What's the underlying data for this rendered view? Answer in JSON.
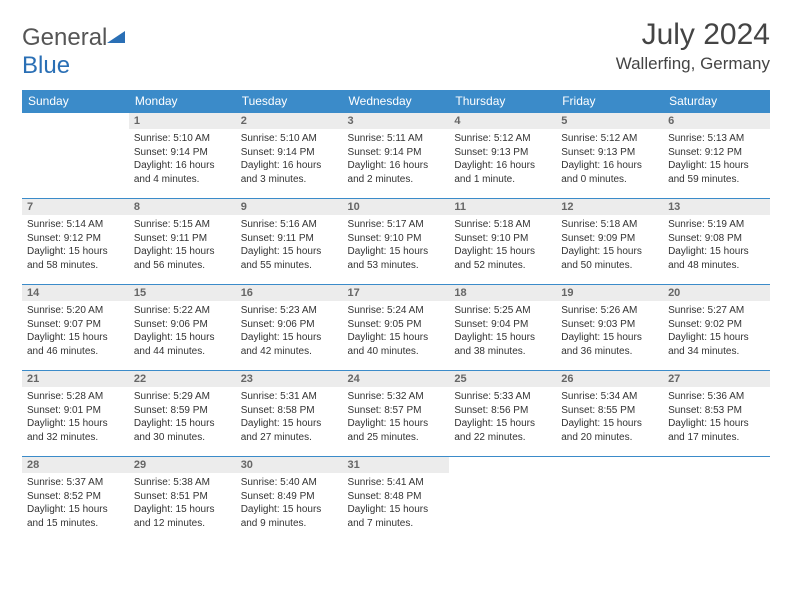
{
  "logo": {
    "text1": "General",
    "text2": "Blue"
  },
  "title": "July 2024",
  "location": "Wallerfing, Germany",
  "colors": {
    "header_bg": "#3b8bc9",
    "header_text": "#ffffff",
    "daynum_bg": "#ececec",
    "daynum_text": "#666666",
    "border": "#3b8bc9",
    "body_text": "#333333",
    "logo_gray": "#555555",
    "logo_blue": "#2a6fb5"
  },
  "weekdays": [
    "Sunday",
    "Monday",
    "Tuesday",
    "Wednesday",
    "Thursday",
    "Friday",
    "Saturday"
  ],
  "first_weekday_offset": 1,
  "days_in_month": 31,
  "days": {
    "1": {
      "sunrise": "5:10 AM",
      "sunset": "9:14 PM",
      "daylight": "16 hours and 4 minutes."
    },
    "2": {
      "sunrise": "5:10 AM",
      "sunset": "9:14 PM",
      "daylight": "16 hours and 3 minutes."
    },
    "3": {
      "sunrise": "5:11 AM",
      "sunset": "9:14 PM",
      "daylight": "16 hours and 2 minutes."
    },
    "4": {
      "sunrise": "5:12 AM",
      "sunset": "9:13 PM",
      "daylight": "16 hours and 1 minute."
    },
    "5": {
      "sunrise": "5:12 AM",
      "sunset": "9:13 PM",
      "daylight": "16 hours and 0 minutes."
    },
    "6": {
      "sunrise": "5:13 AM",
      "sunset": "9:12 PM",
      "daylight": "15 hours and 59 minutes."
    },
    "7": {
      "sunrise": "5:14 AM",
      "sunset": "9:12 PM",
      "daylight": "15 hours and 58 minutes."
    },
    "8": {
      "sunrise": "5:15 AM",
      "sunset": "9:11 PM",
      "daylight": "15 hours and 56 minutes."
    },
    "9": {
      "sunrise": "5:16 AM",
      "sunset": "9:11 PM",
      "daylight": "15 hours and 55 minutes."
    },
    "10": {
      "sunrise": "5:17 AM",
      "sunset": "9:10 PM",
      "daylight": "15 hours and 53 minutes."
    },
    "11": {
      "sunrise": "5:18 AM",
      "sunset": "9:10 PM",
      "daylight": "15 hours and 52 minutes."
    },
    "12": {
      "sunrise": "5:18 AM",
      "sunset": "9:09 PM",
      "daylight": "15 hours and 50 minutes."
    },
    "13": {
      "sunrise": "5:19 AM",
      "sunset": "9:08 PM",
      "daylight": "15 hours and 48 minutes."
    },
    "14": {
      "sunrise": "5:20 AM",
      "sunset": "9:07 PM",
      "daylight": "15 hours and 46 minutes."
    },
    "15": {
      "sunrise": "5:22 AM",
      "sunset": "9:06 PM",
      "daylight": "15 hours and 44 minutes."
    },
    "16": {
      "sunrise": "5:23 AM",
      "sunset": "9:06 PM",
      "daylight": "15 hours and 42 minutes."
    },
    "17": {
      "sunrise": "5:24 AM",
      "sunset": "9:05 PM",
      "daylight": "15 hours and 40 minutes."
    },
    "18": {
      "sunrise": "5:25 AM",
      "sunset": "9:04 PM",
      "daylight": "15 hours and 38 minutes."
    },
    "19": {
      "sunrise": "5:26 AM",
      "sunset": "9:03 PM",
      "daylight": "15 hours and 36 minutes."
    },
    "20": {
      "sunrise": "5:27 AM",
      "sunset": "9:02 PM",
      "daylight": "15 hours and 34 minutes."
    },
    "21": {
      "sunrise": "5:28 AM",
      "sunset": "9:01 PM",
      "daylight": "15 hours and 32 minutes."
    },
    "22": {
      "sunrise": "5:29 AM",
      "sunset": "8:59 PM",
      "daylight": "15 hours and 30 minutes."
    },
    "23": {
      "sunrise": "5:31 AM",
      "sunset": "8:58 PM",
      "daylight": "15 hours and 27 minutes."
    },
    "24": {
      "sunrise": "5:32 AM",
      "sunset": "8:57 PM",
      "daylight": "15 hours and 25 minutes."
    },
    "25": {
      "sunrise": "5:33 AM",
      "sunset": "8:56 PM",
      "daylight": "15 hours and 22 minutes."
    },
    "26": {
      "sunrise": "5:34 AM",
      "sunset": "8:55 PM",
      "daylight": "15 hours and 20 minutes."
    },
    "27": {
      "sunrise": "5:36 AM",
      "sunset": "8:53 PM",
      "daylight": "15 hours and 17 minutes."
    },
    "28": {
      "sunrise": "5:37 AM",
      "sunset": "8:52 PM",
      "daylight": "15 hours and 15 minutes."
    },
    "29": {
      "sunrise": "5:38 AM",
      "sunset": "8:51 PM",
      "daylight": "15 hours and 12 minutes."
    },
    "30": {
      "sunrise": "5:40 AM",
      "sunset": "8:49 PM",
      "daylight": "15 hours and 9 minutes."
    },
    "31": {
      "sunrise": "5:41 AM",
      "sunset": "8:48 PM",
      "daylight": "15 hours and 7 minutes."
    }
  },
  "labels": {
    "sunrise_prefix": "Sunrise: ",
    "sunset_prefix": "Sunset: ",
    "daylight_prefix": "Daylight: "
  }
}
